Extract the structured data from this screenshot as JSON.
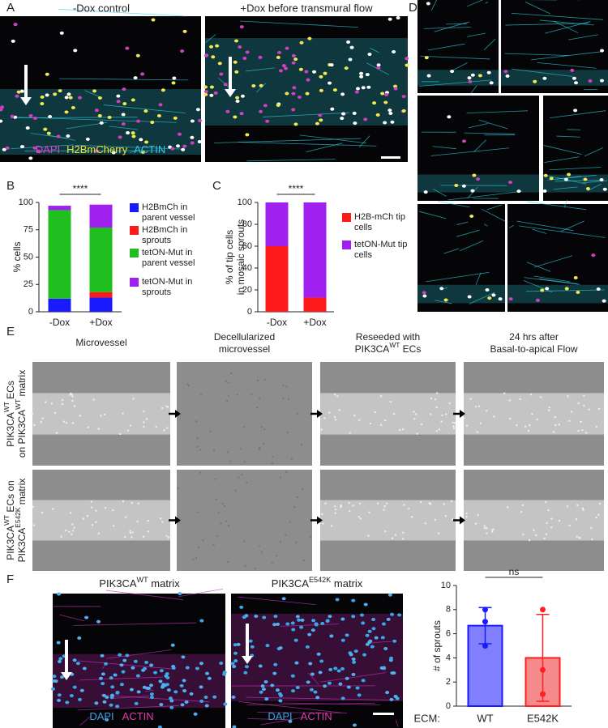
{
  "panel_labels": [
    "A",
    "B",
    "C",
    "D",
    "E",
    "F"
  ],
  "panel_a": {
    "titles": [
      "-Dox control",
      "+Dox before transmural flow"
    ],
    "stains": [
      {
        "text": "DAPI",
        "color": "#e040c8"
      },
      {
        "text": "H2BmCherry",
        "color": "#f2e23a"
      },
      {
        "text": "ACTIN",
        "color": "#34c6e8"
      }
    ]
  },
  "panel_e": {
    "column_titles": [
      [
        [
          "Microvessel"
        ]
      ],
      [
        [
          "Decellularized"
        ],
        [
          "microvessel"
        ]
      ],
      [
        [
          "Reseeded with"
        ],
        [
          "PIK3CA",
          "WT",
          " ECs"
        ]
      ],
      [
        [
          "24 hrs after"
        ],
        [
          "Basal-to-apical Flow"
        ]
      ]
    ],
    "row_labels": [
      [
        [
          "PIK3CA",
          "WT",
          " ECs"
        ],
        [
          "on PIK3CA",
          "WT",
          " matrix"
        ]
      ],
      [
        [
          "PIK3CA",
          "WT",
          " ECs on"
        ],
        [
          "PIK3CA",
          "E542K",
          " matrix"
        ]
      ]
    ]
  },
  "panel_f": {
    "image_titles": [
      [
        "PIK3CA",
        "WT",
        " matrix"
      ],
      [
        "PIK3CA",
        "E542K",
        " matrix"
      ]
    ],
    "stains": [
      {
        "text": "DAPI",
        "color": "#3aa0e8"
      },
      {
        "text": "ACTIN",
        "color": "#e03ab0"
      }
    ]
  },
  "chart_data": [
    {
      "type": "stacked_bar",
      "y_label": [
        "% cells"
      ],
      "categories": [
        "-Dox",
        "+Dox"
      ],
      "series": [
        {
          "name": "H2BmCh in parent vessel",
          "color": "#1a1aff",
          "values": [
            12,
            13
          ]
        },
        {
          "name": "H2BmCh in sprouts",
          "color": "#ff1a1a",
          "values": [
            0,
            5
          ]
        },
        {
          "name": "tetON-Mut in parent vessel",
          "color": "#1fbf1f",
          "values": [
            81,
            59
          ]
        },
        {
          "name": "tetON-Mut in sprouts",
          "color": "#a020f0",
          "values": [
            4,
            21
          ]
        }
      ],
      "ylim": [
        0,
        100
      ],
      "yticks": [
        0,
        25,
        50,
        75,
        100
      ],
      "annotation": "****"
    },
    {
      "type": "stacked_bar",
      "y_label": [
        "% of tip cells",
        "in mosaic sprouts"
      ],
      "categories": [
        "-Dox",
        "+Dox"
      ],
      "series": [
        {
          "name": "H2B-mCh tip cells",
          "color": "#ff1a1a",
          "values": [
            60,
            13
          ]
        },
        {
          "name": "tetON-Mut tip cells",
          "color": "#a020f0",
          "values": [
            40,
            87
          ]
        }
      ],
      "ylim": [
        0,
        100
      ],
      "yticks": [
        0,
        20,
        40,
        60,
        80,
        100
      ],
      "annotation": "****"
    },
    {
      "type": "bar",
      "y_label": [
        "# of sprouts"
      ],
      "x_label": "ECM:",
      "categories": [
        "WT",
        "E542K"
      ],
      "values": [
        6.67,
        4
      ],
      "errors": [
        1.5,
        3.6
      ],
      "points": [
        [
          8,
          7,
          5
        ],
        [
          8,
          3,
          1
        ]
      ],
      "colors": [
        "#8080ff",
        "#f48a8a"
      ],
      "edge_colors": [
        "#1a1aff",
        "#ff2020"
      ],
      "ylim": [
        0,
        10
      ],
      "yticks": [
        0,
        2,
        4,
        6,
        8,
        10
      ],
      "annotation": "ns"
    }
  ]
}
